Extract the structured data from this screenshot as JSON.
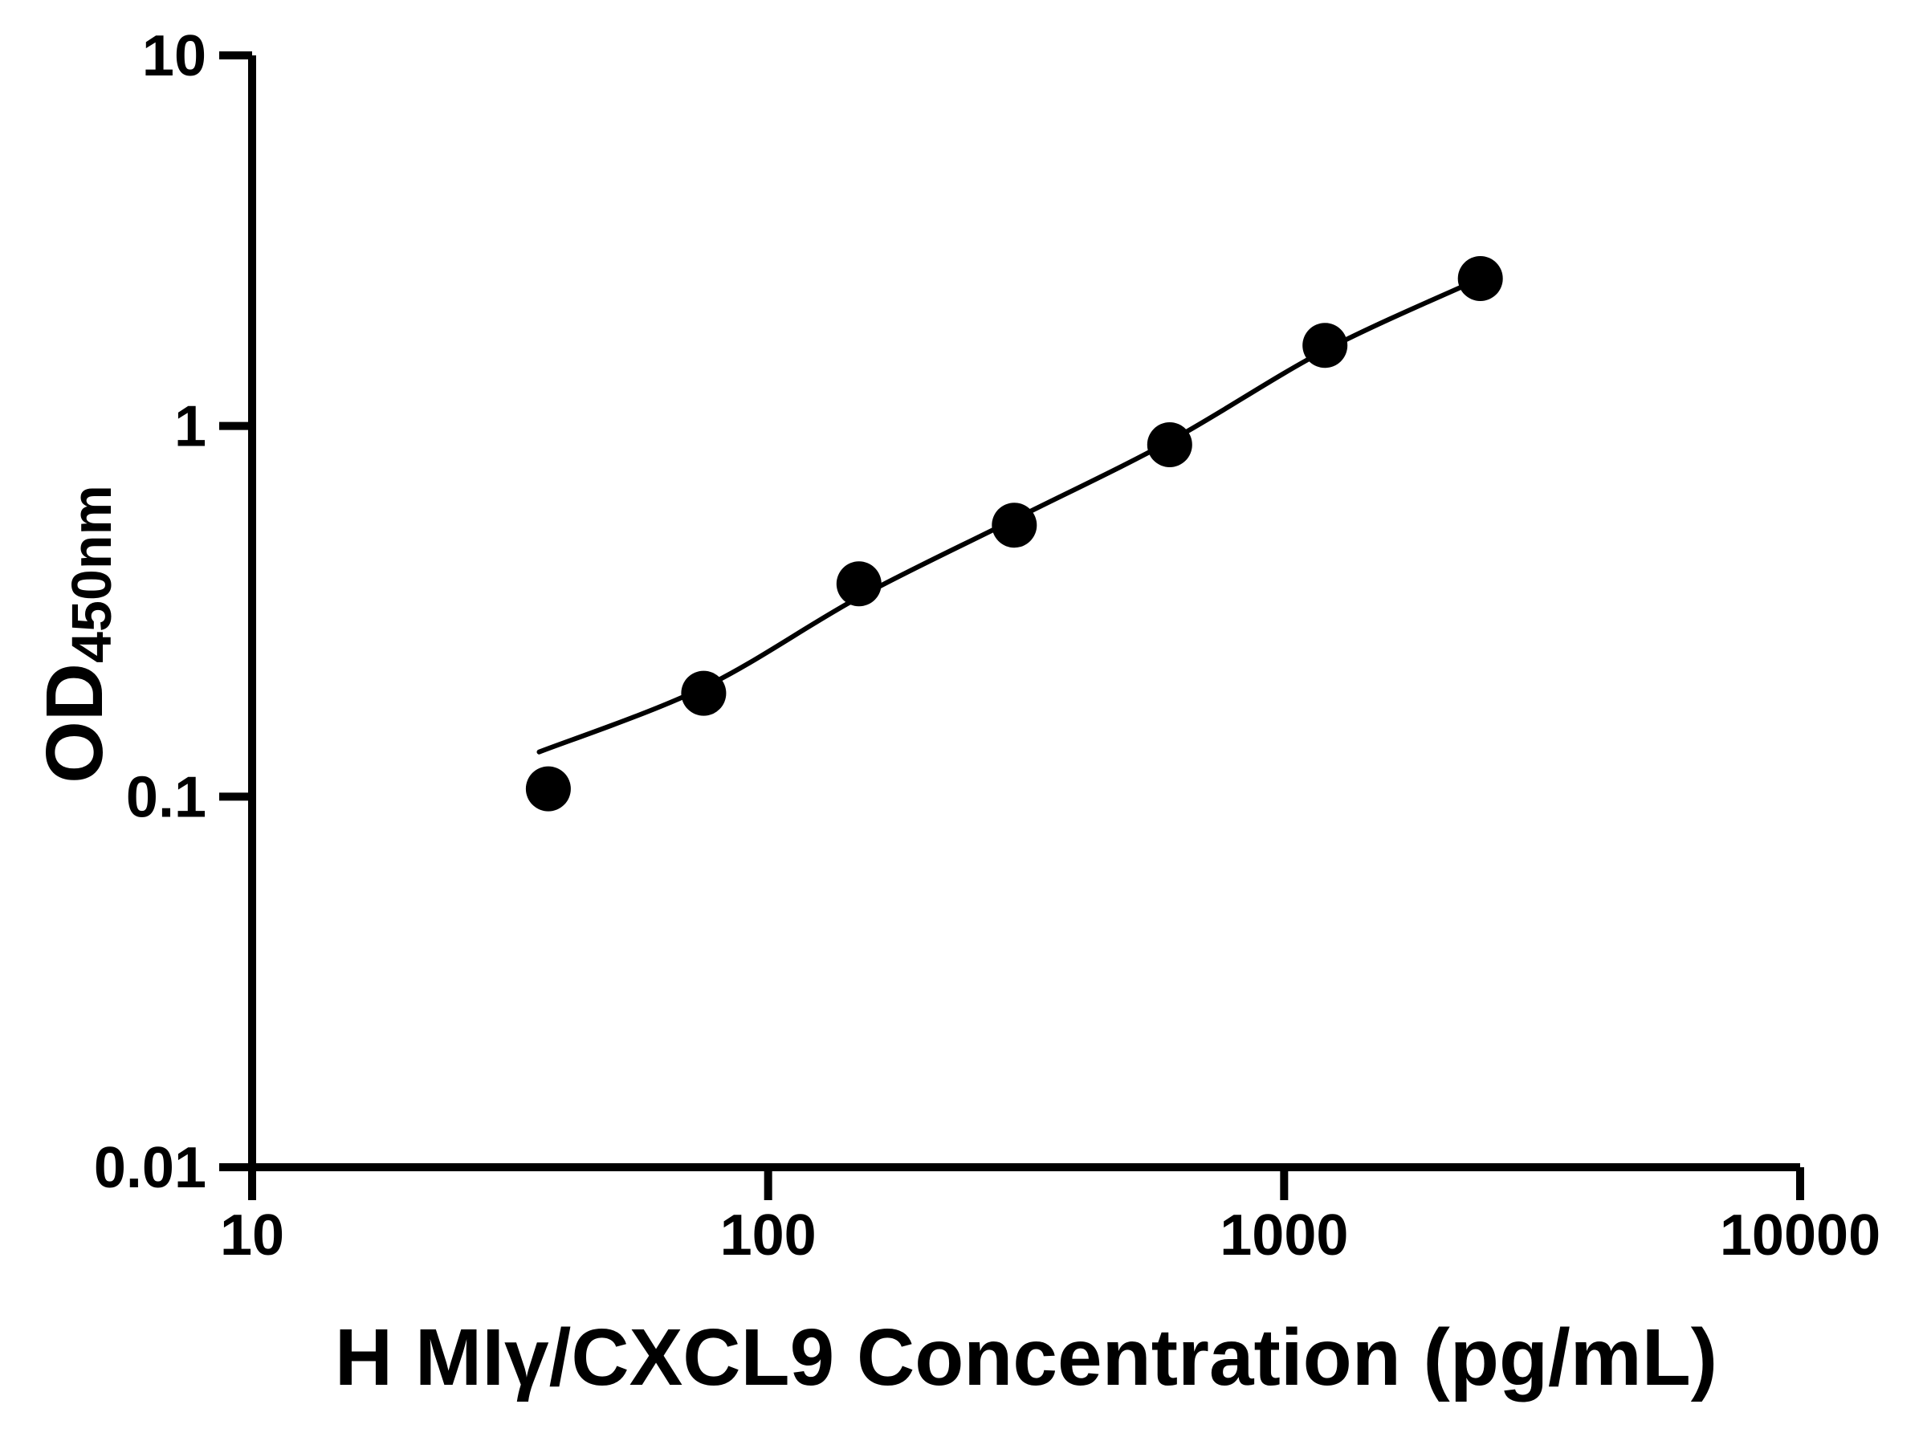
{
  "chart_data": {
    "type": "scatter",
    "title": "",
    "xlabel": "H MIγ/CXCL9 Concentration (pg/mL)",
    "ylabel_main": "OD",
    "ylabel_sub": "450nm",
    "x_scale": "log",
    "y_scale": "log",
    "xlim": [
      10,
      10000
    ],
    "ylim": [
      0.01,
      10
    ],
    "grid": false,
    "legend_position": "none",
    "axis_color": "#000000",
    "text_color": "#000000",
    "background_color": "#ffffff",
    "x_ticks": [
      {
        "value": 10,
        "label": "10"
      },
      {
        "value": 100,
        "label": "100"
      },
      {
        "value": 1000,
        "label": "1000"
      },
      {
        "value": 10000,
        "label": "10000"
      }
    ],
    "y_ticks": [
      {
        "value": 10,
        "label": "10"
      },
      {
        "value": 1,
        "label": "1"
      },
      {
        "value": 0.1,
        "label": "0.1"
      },
      {
        "value": 0.01,
        "label": "0.01"
      }
    ],
    "series": [
      {
        "name": "fitted-curve",
        "type": "line",
        "line_color": "#000000",
        "line_width": 6,
        "points": [
          {
            "x": 36,
            "y": 0.132
          },
          {
            "x": 75,
            "y": 0.197
          },
          {
            "x": 150,
            "y": 0.345
          },
          {
            "x": 300,
            "y": 0.56
          },
          {
            "x": 600,
            "y": 0.91
          },
          {
            "x": 1200,
            "y": 1.6
          },
          {
            "x": 2400,
            "y": 2.5
          }
        ]
      },
      {
        "name": "standard-points",
        "type": "scatter",
        "marker_shape": "filled-circle",
        "marker_color": "#000000",
        "marker_radius": 28,
        "points": [
          {
            "x": 37.5,
            "y": 0.105
          },
          {
            "x": 75,
            "y": 0.19
          },
          {
            "x": 150,
            "y": 0.375
          },
          {
            "x": 300,
            "y": 0.54
          },
          {
            "x": 600,
            "y": 0.89
          },
          {
            "x": 1200,
            "y": 1.65
          },
          {
            "x": 2400,
            "y": 2.5
          }
        ]
      }
    ]
  }
}
